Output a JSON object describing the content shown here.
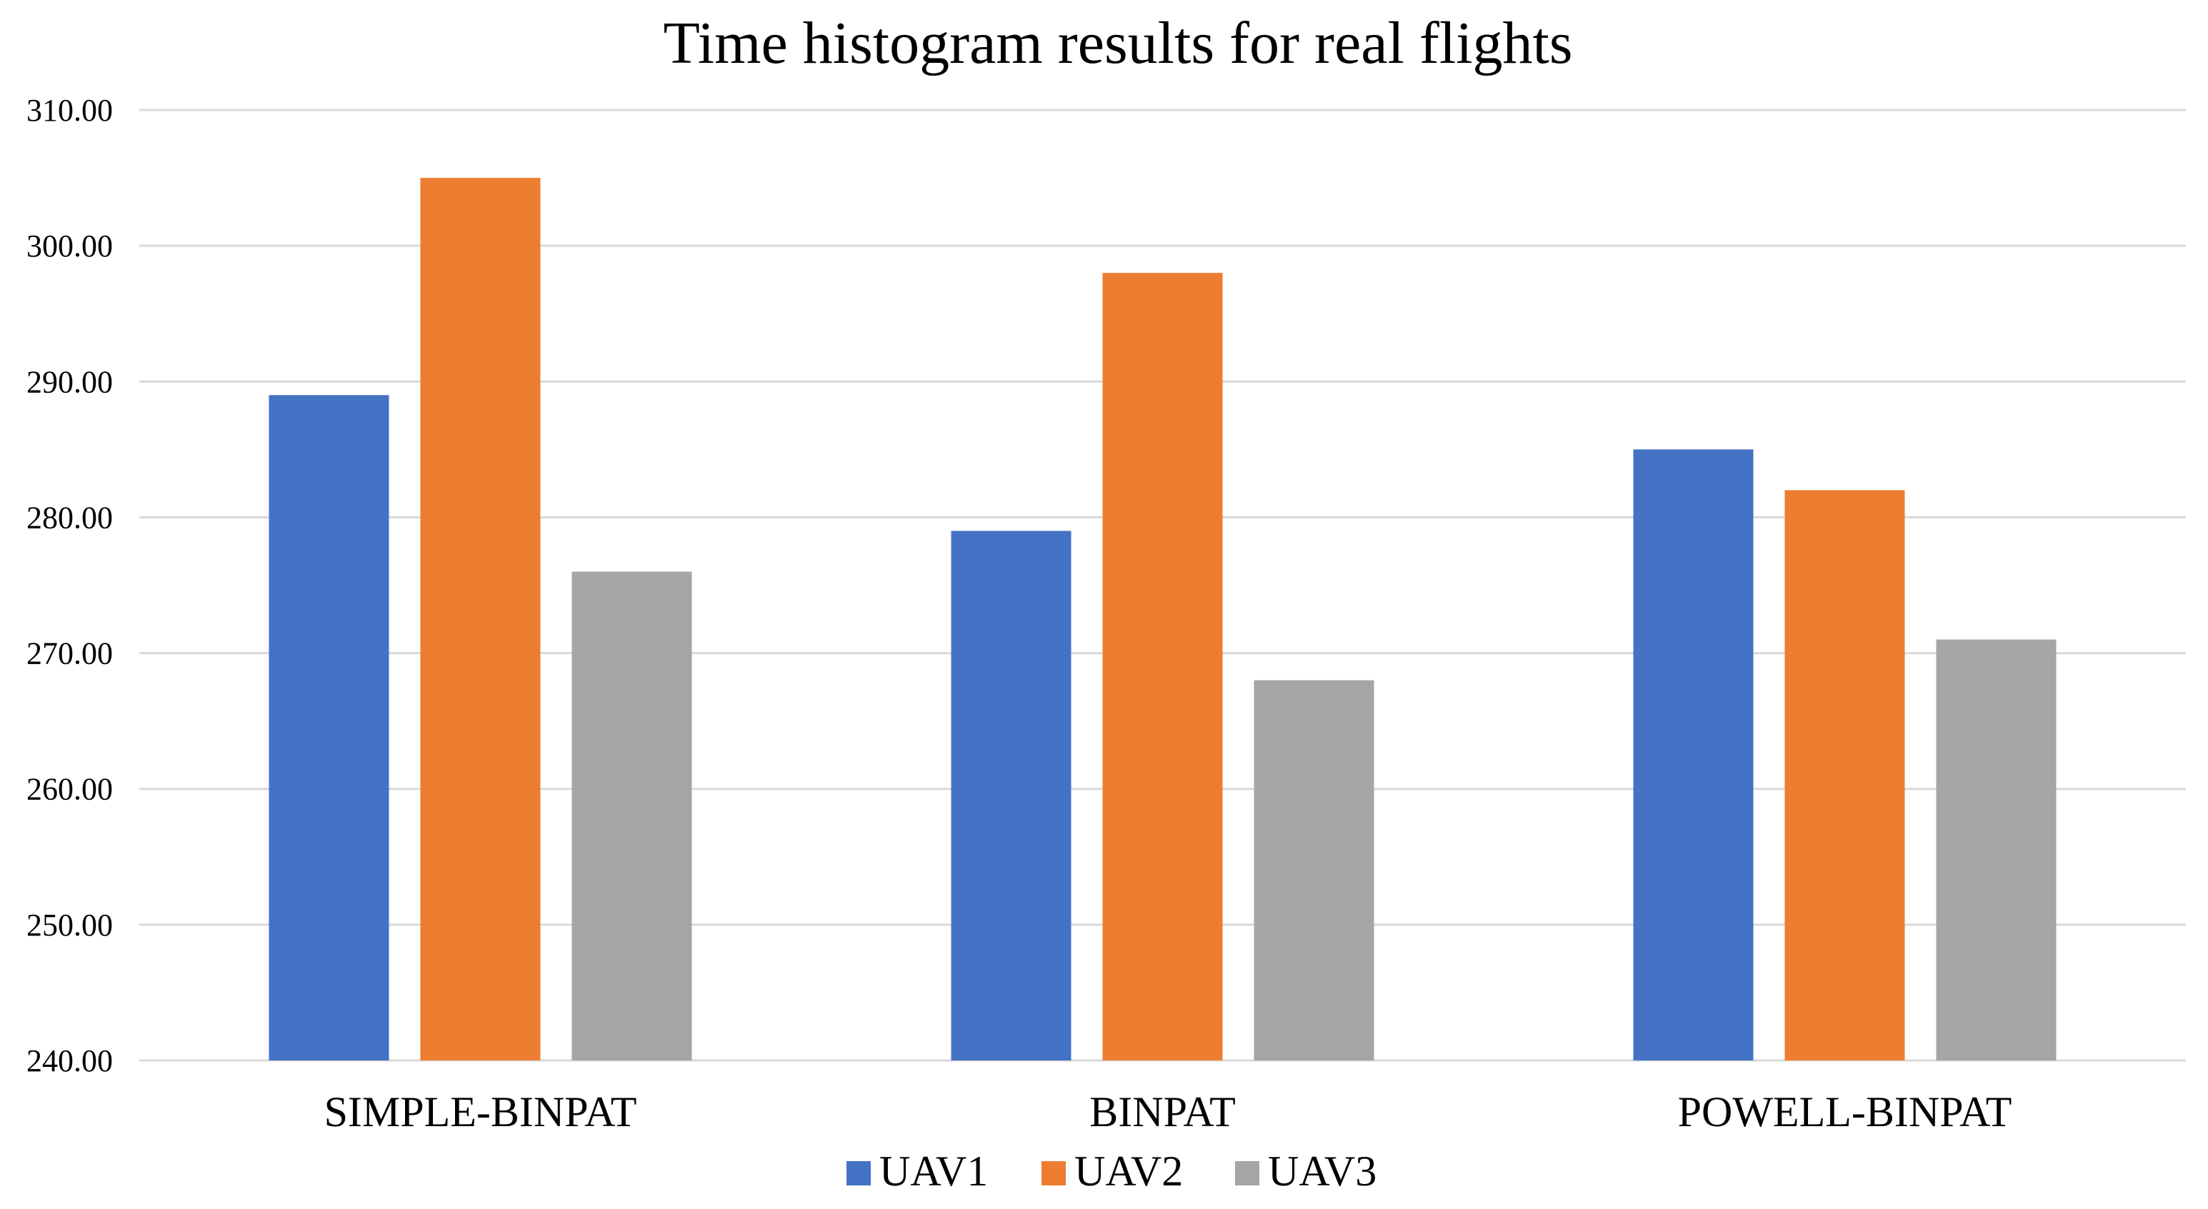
{
  "chart_data": {
    "type": "bar",
    "title": "Time histogram results for real flights",
    "xlabel": "",
    "ylabel": "",
    "ylim": [
      240,
      310
    ],
    "ytick_step": 10,
    "ytick_labels": [
      "240.00",
      "250.00",
      "260.00",
      "270.00",
      "280.00",
      "290.00",
      "300.00",
      "310.00"
    ],
    "categories": [
      "SIMPLE-BINPAT",
      "BINPAT",
      "POWELL-BINPAT"
    ],
    "series": [
      {
        "name": "UAV1",
        "color": "#4472c4",
        "values": [
          289,
          279,
          285
        ]
      },
      {
        "name": "UAV2",
        "color": "#ed7d31",
        "values": [
          305,
          298,
          282
        ]
      },
      {
        "name": "UAV3",
        "color": "#a5a5a5",
        "values": [
          276,
          268,
          271
        ]
      }
    ],
    "grid": true,
    "legend_position": "bottom-center",
    "gridline_color": "#d9d9d9"
  }
}
